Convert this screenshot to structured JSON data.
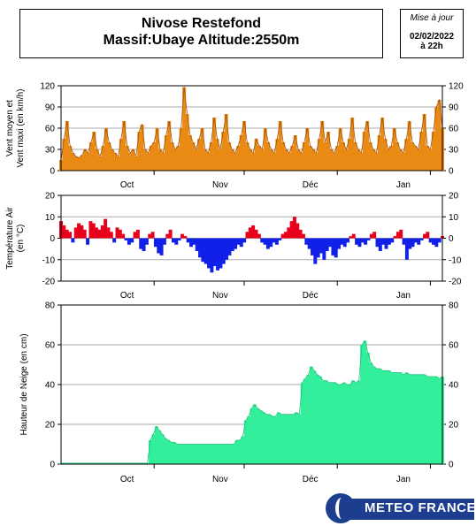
{
  "header": {
    "title": "Nivose Restefond",
    "subtitle": "Massif:Ubaye Altitude:2550m",
    "update_label": "Mise à jour",
    "update_date": "02/02/2022",
    "update_time": "à 22h"
  },
  "branding": {
    "logo_text": "METEO FRANCE",
    "logo_color": "#1d3d8f"
  },
  "chart_data": [
    {
      "type": "area",
      "ylabel": "Vent moyen et Vent maxi (en km/h)",
      "ylim": [
        0,
        120
      ],
      "yticks": [
        0,
        30,
        60,
        90,
        120
      ],
      "months": [
        "Oct",
        "Nov",
        "Déc",
        "Jan"
      ],
      "x_domain_days": [
        0,
        127
      ],
      "color": "#e88a14",
      "grid": "horizontal",
      "series": [
        {
          "values": [
            15,
            45,
            70,
            35,
            25,
            20,
            18,
            22,
            30,
            25,
            40,
            55,
            30,
            20,
            35,
            60,
            40,
            30,
            25,
            20,
            45,
            70,
            35,
            25,
            30,
            20,
            55,
            65,
            30,
            25,
            35,
            40,
            60,
            30,
            25,
            50,
            70,
            40,
            30,
            35,
            60,
            118,
            80,
            50,
            40,
            30,
            45,
            60,
            30,
            25,
            40,
            75,
            45,
            30,
            55,
            80,
            40,
            30,
            25,
            35,
            50,
            70,
            40,
            30,
            25,
            45,
            35,
            30,
            60,
            40,
            30,
            25,
            45,
            70,
            40,
            30,
            25,
            35,
            50,
            30,
            25,
            40,
            60,
            35,
            30,
            25,
            45,
            70,
            40,
            55,
            30,
            25,
            35,
            60,
            40,
            30,
            45,
            75,
            40,
            30,
            25,
            55,
            70,
            40,
            30,
            25,
            50,
            75,
            45,
            30,
            35,
            60,
            40,
            30,
            25,
            45,
            70,
            40,
            35,
            30,
            55,
            80,
            35,
            30,
            55,
            90,
            100,
            60
          ]
        }
      ]
    },
    {
      "type": "bar",
      "ylabel": "Température Air (en °C)",
      "ylim": [
        -20,
        20
      ],
      "yticks": [
        -20,
        -10,
        0,
        10,
        20
      ],
      "months": [
        "Oct",
        "Nov",
        "Déc",
        "Jan"
      ],
      "x_domain_days": [
        0,
        127
      ],
      "positive_color": "#e8001c",
      "negative_color": "#1020e8",
      "grid": "horizontal",
      "values": [
        8,
        6,
        4,
        3,
        -2,
        5,
        7,
        6,
        4,
        -3,
        8,
        7,
        5,
        4,
        6,
        9,
        5,
        3,
        -2,
        5,
        4,
        2,
        -1,
        -3,
        -2,
        3,
        4,
        -5,
        -6,
        -3,
        2,
        3,
        -4,
        -7,
        -8,
        -3,
        2,
        4,
        -2,
        -3,
        -1,
        2,
        1,
        -2,
        -4,
        -3,
        -6,
        -9,
        -11,
        -12,
        -14,
        -16,
        -13,
        -15,
        -14,
        -12,
        -10,
        -8,
        -6,
        -5,
        -3,
        -4,
        -2,
        3,
        5,
        6,
        4,
        2,
        -2,
        -3,
        -5,
        -4,
        -2,
        -3,
        -1,
        2,
        3,
        5,
        8,
        10,
        7,
        4,
        2,
        -3,
        -5,
        -8,
        -12,
        -9,
        -7,
        -10,
        -6,
        -4,
        -8,
        -9,
        -5,
        -3,
        -4,
        -2,
        1,
        2,
        -3,
        -4,
        -2,
        -3,
        -1,
        2,
        3,
        -4,
        -6,
        -3,
        -5,
        -3,
        -2,
        1,
        3,
        4,
        -3,
        -10,
        -5,
        -4,
        -2,
        -3,
        -1,
        2,
        3,
        -2,
        -3,
        -4,
        -2,
        1
      ]
    },
    {
      "type": "area",
      "ylabel": "Hauteur de Neige (en cm)",
      "ylim": [
        0,
        80
      ],
      "yticks": [
        0,
        20,
        40,
        60,
        80
      ],
      "months": [
        "Oct",
        "Nov",
        "Déc",
        "Jan"
      ],
      "x_domain_days": [
        0,
        127
      ],
      "color": "#33ee9a",
      "grid": "horizontal",
      "values": [
        0.5,
        0.5,
        0.5,
        0.5,
        0.5,
        0.5,
        0.5,
        0.5,
        0.5,
        0.5,
        0.5,
        0.5,
        0.5,
        0.5,
        0.5,
        0.5,
        0.5,
        0.5,
        0.5,
        0.5,
        0.5,
        0.5,
        0.5,
        0.5,
        0.5,
        0.5,
        0.5,
        0.5,
        0.5,
        0.5,
        12,
        15,
        19,
        17,
        15,
        13,
        12,
        11,
        11,
        10,
        10,
        10,
        10,
        10,
        10,
        10,
        10,
        10,
        10,
        10,
        10,
        10,
        10,
        10,
        10,
        10,
        10,
        10,
        10,
        12,
        12,
        14,
        22,
        24,
        28,
        30,
        28,
        27,
        26,
        25,
        25,
        24,
        24,
        26,
        25,
        25,
        25,
        25,
        25,
        26,
        25,
        41,
        43,
        45,
        49,
        47,
        45,
        44,
        42,
        42,
        41,
        41,
        41,
        40,
        40,
        41,
        40,
        40,
        42,
        41,
        42,
        60,
        62,
        56,
        51,
        49,
        48,
        48,
        47,
        47,
        47,
        46,
        46,
        46,
        46,
        45,
        46,
        45,
        45,
        45,
        45,
        45,
        45,
        44,
        44,
        44,
        44,
        43,
        44
      ]
    }
  ]
}
